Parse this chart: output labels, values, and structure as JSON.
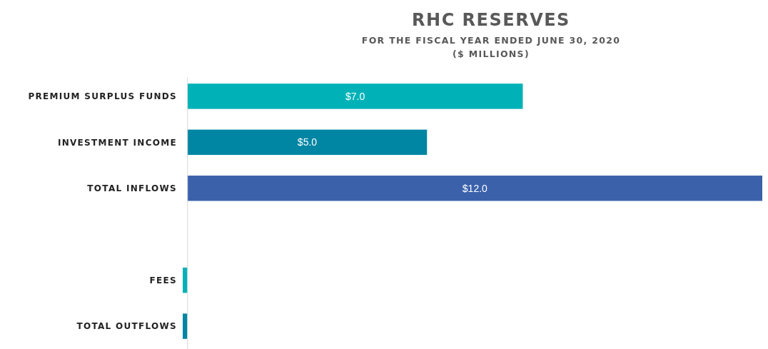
{
  "chart_data": {
    "type": "bar",
    "orientation": "horizontal",
    "title": "RHC RESERVES",
    "subtitle": "FOR THE FISCAL YEAR ENDED JUNE 30, 2020\n($ MILLIONS)",
    "categories": [
      "PREMIUM SURPLUS FUNDS",
      "INVESTMENT INCOME",
      "TOTAL INFLOWS",
      null,
      "FEES",
      "TOTAL OUTFLOWS"
    ],
    "values": [
      7.0,
      5.0,
      12.0,
      null,
      -0.1,
      -0.1
    ],
    "colors": [
      "#00b2b7",
      "#0085a3",
      "#3b61ab",
      null,
      "#00b2b7",
      "#0085a3"
    ],
    "value_labels": [
      "$7.0",
      "$5.0",
      "$12.0",
      null,
      null,
      null
    ],
    "xlim": [
      -0.1,
      12
    ],
    "tick_labels": "y"
  }
}
